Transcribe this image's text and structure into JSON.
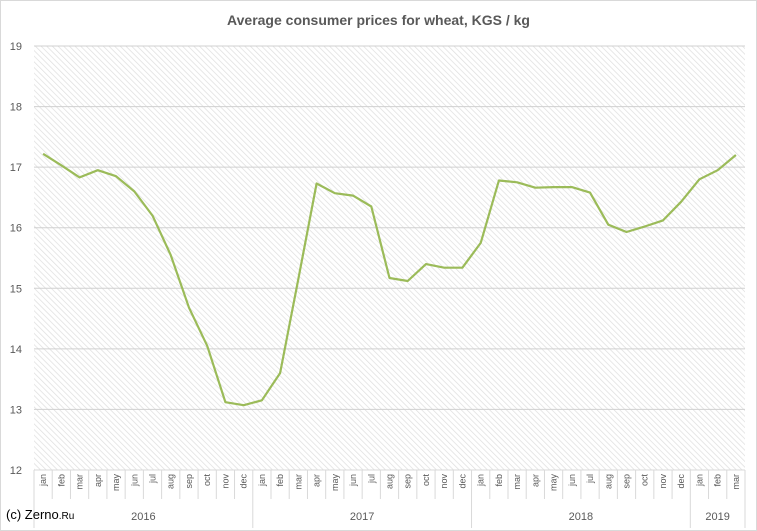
{
  "chart_data": {
    "type": "line",
    "title": "Average consumer prices for wheat, KGS / kg",
    "xlabel": "",
    "ylabel": "",
    "ylim": [
      12,
      19
    ],
    "y_ticks": [
      "12",
      "13",
      "14",
      "15",
      "16",
      "17",
      "18",
      "19"
    ],
    "grid": true,
    "legend": "none",
    "line_color": "#9bbb59",
    "categories": [
      "jan",
      "feb",
      "mar",
      "apr",
      "may",
      "jun",
      "jul",
      "aug",
      "sep",
      "oct",
      "nov",
      "dec",
      "jan",
      "feb",
      "mar",
      "apr",
      "may",
      "jun",
      "jul",
      "aug",
      "sep",
      "oct",
      "nov",
      "dec",
      "jan",
      "feb",
      "mar",
      "apr",
      "may",
      "jun",
      "jul",
      "aug",
      "sep",
      "oct",
      "nov",
      "dec",
      "jan",
      "feb",
      "mar"
    ],
    "year_groups": [
      {
        "label": "2016",
        "count": 12
      },
      {
        "label": "2017",
        "count": 12
      },
      {
        "label": "2018",
        "count": 12
      },
      {
        "label": "2019",
        "count": 3
      }
    ],
    "values": [
      17.22,
      17.03,
      16.83,
      16.95,
      16.85,
      16.6,
      16.2,
      15.55,
      14.68,
      14.05,
      13.12,
      13.07,
      13.15,
      13.6,
      15.15,
      16.73,
      16.57,
      16.53,
      16.35,
      15.17,
      15.12,
      15.4,
      15.34,
      15.34,
      15.75,
      16.78,
      16.75,
      16.66,
      16.67,
      16.67,
      16.58,
      16.05,
      15.93,
      16.02,
      16.12,
      16.43,
      16.8,
      16.95,
      17.2
    ]
  },
  "credit": {
    "prefix": "(c) Zerno",
    "suffix": ".Ru"
  }
}
